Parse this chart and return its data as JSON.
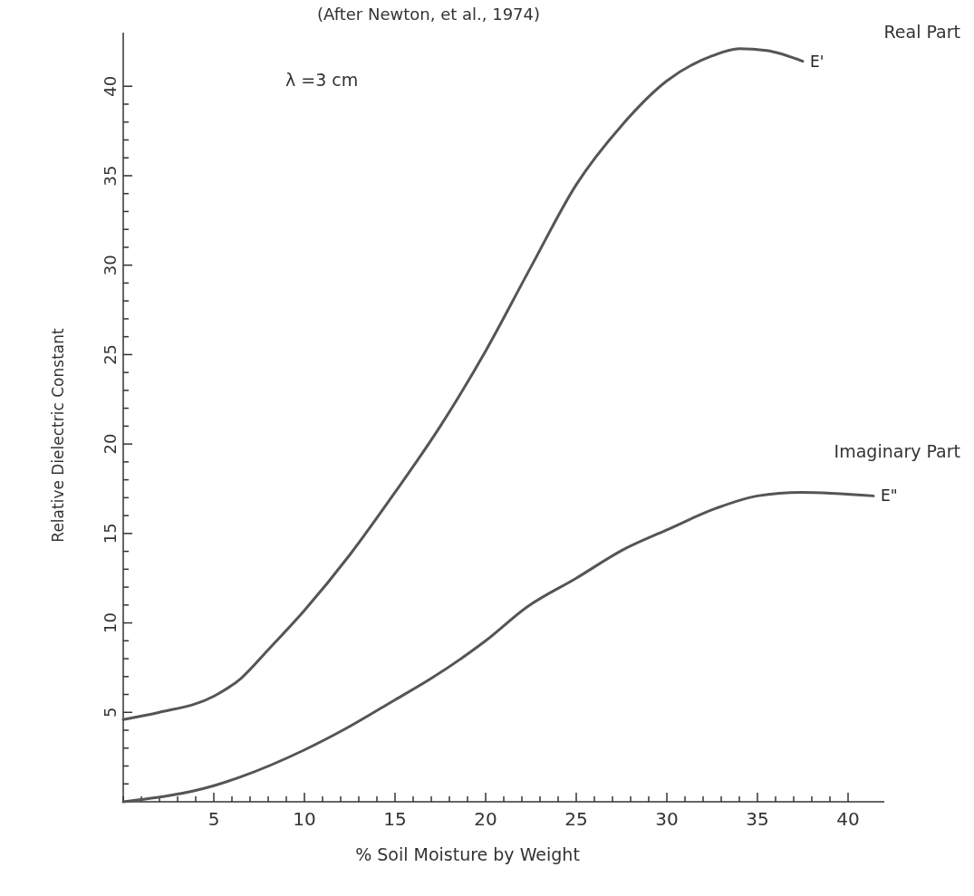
{
  "chart_data": {
    "type": "line",
    "title": "(After Newton, et al., 1974)",
    "xlabel": "% Soil Moisture by Weight",
    "ylabel": "Relative Dielectric Constant",
    "annotations": [
      "λ =3 cm",
      "Real Part",
      "Imaginary Part"
    ],
    "xlim": [
      0,
      42
    ],
    "ylim": [
      0,
      43
    ],
    "xticks": [
      {
        "value": 0,
        "label": null
      },
      {
        "value": 1,
        "label": null
      },
      {
        "value": 2,
        "label": null
      },
      {
        "value": 3,
        "label": null
      },
      {
        "value": 4,
        "label": null
      },
      5,
      {
        "value": 6,
        "label": null
      },
      {
        "value": 7,
        "label": null
      },
      {
        "value": 8,
        "label": null
      },
      {
        "value": 9,
        "label": null
      },
      10,
      {
        "value": 11,
        "label": null
      },
      {
        "value": 12,
        "label": null
      },
      {
        "value": 13,
        "label": null
      },
      {
        "value": 14,
        "label": null
      },
      15,
      {
        "value": 16,
        "label": null
      },
      {
        "value": 17,
        "label": null
      },
      {
        "value": 18,
        "label": null
      },
      {
        "value": 19,
        "label": null
      },
      20,
      {
        "value": 21,
        "label": null
      },
      {
        "value": 22,
        "label": null
      },
      {
        "value": 23,
        "label": null
      },
      {
        "value": 24,
        "label": null
      },
      25,
      {
        "value": 26,
        "label": null
      },
      {
        "value": 27,
        "label": null
      },
      {
        "value": 28,
        "label": null
      },
      {
        "value": 29,
        "label": null
      },
      30,
      {
        "value": 31,
        "label": null
      },
      {
        "value": 32,
        "label": null
      },
      {
        "value": 33,
        "label": null
      },
      {
        "value": 34,
        "label": null
      },
      35,
      {
        "value": 36,
        "label": null
      },
      {
        "value": 37,
        "label": null
      },
      {
        "value": 38,
        "label": null
      },
      {
        "value": 39,
        "label": null
      },
      40
    ],
    "yticks": [
      {
        "value": 1,
        "label": null
      },
      {
        "value": 2,
        "label": null
      },
      {
        "value": 3,
        "label": null
      },
      {
        "value": 4,
        "label": null
      },
      5,
      {
        "value": 6,
        "label": null
      },
      {
        "value": 7,
        "label": null
      },
      {
        "value": 8,
        "label": null
      },
      {
        "value": 9,
        "label": null
      },
      10,
      {
        "value": 11,
        "label": null
      },
      {
        "value": 12,
        "label": null
      },
      {
        "value": 13,
        "label": null
      },
      {
        "value": 14,
        "label": null
      },
      15,
      {
        "value": 16,
        "label": null
      },
      {
        "value": 17,
        "label": null
      },
      {
        "value": 18,
        "label": null
      },
      {
        "value": 19,
        "label": null
      },
      20,
      {
        "value": 21,
        "label": null
      },
      {
        "value": 22,
        "label": null
      },
      {
        "value": 23,
        "label": null
      },
      {
        "value": 24,
        "label": null
      },
      25,
      {
        "value": 26,
        "label": null
      },
      {
        "value": 27,
        "label": null
      },
      {
        "value": 28,
        "label": null
      },
      {
        "value": 29,
        "label": null
      },
      30,
      {
        "value": 31,
        "label": null
      },
      {
        "value": 32,
        "label": null
      },
      {
        "value": 33,
        "label": null
      },
      {
        "value": 34,
        "label": null
      },
      35,
      {
        "value": 36,
        "label": null
      },
      {
        "value": 37,
        "label": null
      },
      {
        "value": 38,
        "label": null
      },
      {
        "value": 39,
        "label": null
      },
      40
    ],
    "grid": false,
    "marker": "none",
    "line_style": "solid",
    "series": [
      {
        "name": "E'",
        "color": "#555555",
        "x": [
          0,
          2,
          5,
          6.5,
          8,
          10,
          12.5,
          15,
          17.5,
          20,
          22.5,
          25,
          27.5,
          30,
          32.5,
          34,
          35.5,
          37.5
        ],
        "values": [
          4.6,
          5.0,
          5.9,
          6.9,
          8.5,
          10.7,
          13.8,
          17.3,
          21,
          25.2,
          29.9,
          34.5,
          37.8,
          40.3,
          41.7,
          42.1,
          42.0,
          41.4
        ]
      },
      {
        "name": "E\"",
        "color": "#555555",
        "x": [
          0,
          5,
          6.5,
          10,
          12.3,
          15,
          17,
          20,
          22.3,
          25,
          27.6,
          30,
          32.7,
          35,
          37.4,
          41.4
        ],
        "values": [
          0,
          0.9,
          1.4,
          2.9,
          4.1,
          5.7,
          6.9,
          9.0,
          10.9,
          12.5,
          14.1,
          15.2,
          16.4,
          17.1,
          17.3,
          17.1
        ]
      }
    ]
  }
}
